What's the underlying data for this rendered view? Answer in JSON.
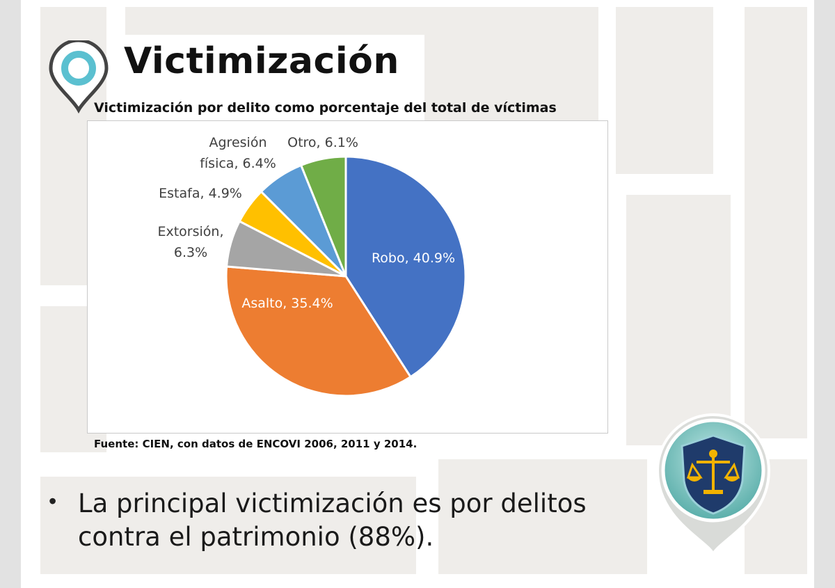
{
  "slide": {
    "title": "Victimización",
    "source": "Fuente: CIEN, con datos de ENCOVI 2006, 2011 y 2014.",
    "bullet": "La principal victimización es por delitos contra el patrimonio (88%).",
    "bullet_lines": [
      "La principal victimización es por delitos",
      "contra el patrimonio (88%)."
    ]
  },
  "icons": {
    "pin": "map-pin-icon",
    "logo": "justice-scales-shield-logo"
  },
  "colors": {
    "Robo": "#4472c4",
    "Asalto": "#ed7d31",
    "Extorsión": "#a5a5a5",
    "Estafa": "#ffc000",
    "Agresión física": "#5b9bd5",
    "Otro": "#70ad47",
    "pin_ring": "#5bc0d0",
    "shield": "#1f3b6b",
    "scales": "#f2b300"
  },
  "chart_data": {
    "type": "pie",
    "title": "Victimización por delito como porcentaje del total de víctimas",
    "categories": [
      "Robo",
      "Asalto",
      "Extorsión",
      "Estafa",
      "Agresión física",
      "Otro"
    ],
    "values": [
      40.9,
      35.4,
      6.3,
      4.9,
      6.4,
      6.1
    ],
    "unit": "%",
    "labels": [
      {
        "lines": [
          "Robo, 40.9%"
        ]
      },
      {
        "lines": [
          "Asalto, 35.4%"
        ]
      },
      {
        "lines": [
          "Extorsión,",
          "6.3%"
        ]
      },
      {
        "lines": [
          "Estafa, 4.9%"
        ]
      },
      {
        "lines": [
          "Agresión",
          "física, 6.4%"
        ]
      },
      {
        "lines": [
          "Otro, 6.1%"
        ]
      }
    ],
    "legend": "none",
    "label_placement": "inside for Robo and Asalto, outside for the rest"
  }
}
